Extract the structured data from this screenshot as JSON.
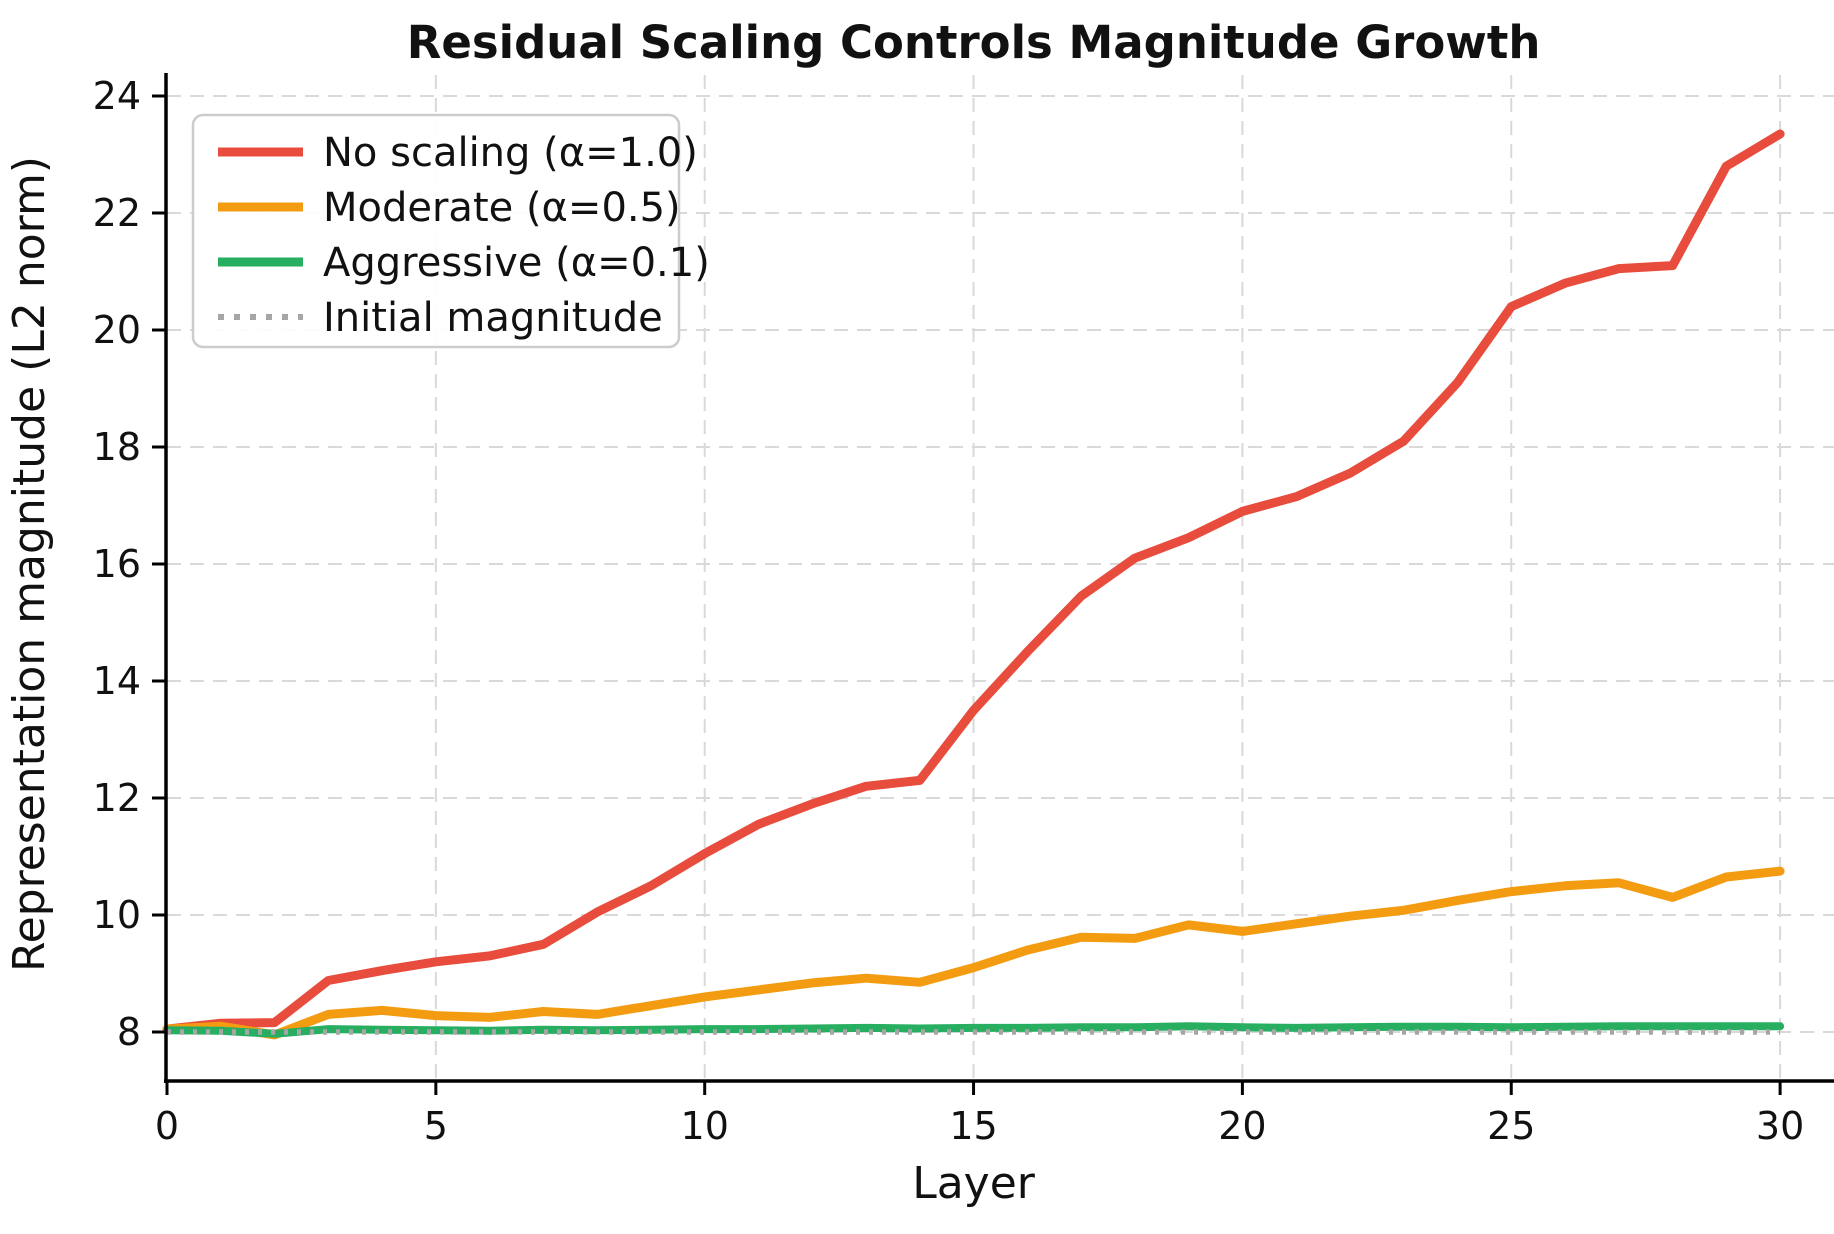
{
  "title": "Residual Scaling Controls Magnitude Growth",
  "chart_data": {
    "type": "line",
    "title": "Residual Scaling Controls Magnitude Growth",
    "xlabel": "Layer",
    "ylabel": "Representation magnitude (L2 norm)",
    "x_range": [
      0,
      30
    ],
    "ylim": [
      7.16,
      24.36
    ],
    "xlim": [
      0,
      31
    ],
    "grid": true,
    "grid_style": "dashed",
    "legend_position": "upper left",
    "xticks": [
      0,
      5,
      10,
      15,
      20,
      25,
      30
    ],
    "yticks": [
      8,
      10,
      12,
      14,
      16,
      18,
      20,
      22,
      24
    ],
    "x": [
      0,
      1,
      2,
      3,
      4,
      5,
      6,
      7,
      8,
      9,
      10,
      11,
      12,
      13,
      14,
      15,
      16,
      17,
      18,
      19,
      20,
      21,
      22,
      23,
      24,
      25,
      26,
      27,
      28,
      29,
      30
    ],
    "series": [
      {
        "name": "No scaling (α=1.0)",
        "color": "#e74c3c",
        "style": "solid",
        "line_width": 9,
        "values": [
          8.05,
          8.15,
          8.16,
          8.88,
          9.05,
          9.2,
          9.3,
          9.5,
          10.05,
          10.5,
          11.05,
          11.55,
          11.9,
          12.2,
          12.3,
          13.5,
          14.5,
          15.45,
          16.1,
          16.45,
          16.9,
          17.15,
          17.55,
          18.1,
          19.1,
          20.4,
          20.8,
          21.05,
          21.1,
          22.8,
          23.35
        ]
      },
      {
        "name": "Moderate (α=0.5)",
        "color": "#f39c12",
        "style": "solid",
        "line_width": 9,
        "values": [
          8.05,
          8.1,
          7.95,
          8.3,
          8.37,
          8.28,
          8.25,
          8.35,
          8.3,
          8.45,
          8.6,
          8.72,
          8.84,
          8.92,
          8.85,
          9.1,
          9.4,
          9.62,
          9.6,
          9.83,
          9.72,
          9.85,
          9.98,
          10.08,
          10.25,
          10.4,
          10.5,
          10.55,
          10.3,
          10.65,
          10.75
        ]
      },
      {
        "name": "Aggressive (α=0.1)",
        "color": "#27ae60",
        "style": "solid",
        "line_width": 8,
        "values": [
          8.03,
          8.02,
          7.97,
          8.05,
          8.04,
          8.03,
          8.02,
          8.04,
          8.03,
          8.04,
          8.05,
          8.05,
          8.06,
          8.07,
          8.06,
          8.07,
          8.07,
          8.08,
          8.08,
          8.1,
          8.08,
          8.07,
          8.08,
          8.09,
          8.09,
          8.08,
          8.09,
          8.1,
          8.1,
          8.1,
          8.1
        ]
      },
      {
        "name": "Initial magnitude",
        "color": "#a6a6a6",
        "style": "dotted",
        "line_width": 5.5,
        "values": [
          8,
          8,
          8,
          8,
          8,
          8,
          8,
          8,
          8,
          8,
          8,
          8,
          8,
          8,
          8,
          8,
          8,
          8,
          8,
          8,
          8,
          8,
          8,
          8,
          8,
          8,
          8,
          8,
          8,
          8,
          8
        ]
      }
    ],
    "colors": {
      "grid": "#d9d9d9",
      "spine": "#000000",
      "text": "#111111",
      "legend_border": "#cccccc",
      "background": "#ffffff"
    }
  }
}
